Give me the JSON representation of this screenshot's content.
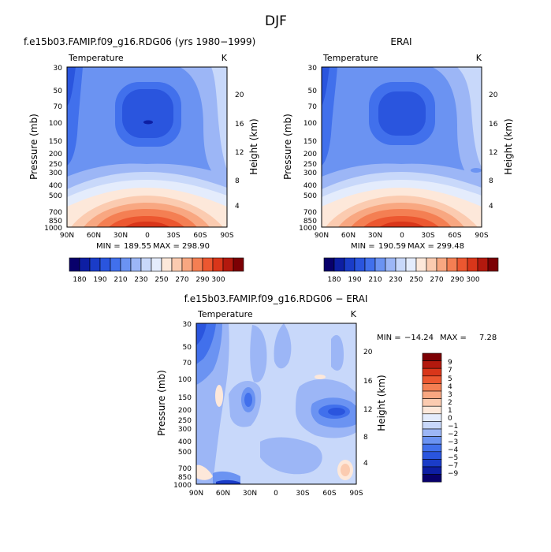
{
  "title": "DJF",
  "colors": {
    "levels": [
      "#08006b",
      "#0d1ea3",
      "#1a3cc8",
      "#2a55de",
      "#4170ec",
      "#6b93f2",
      "#9cb6f6",
      "#c8d8fa",
      "#e4ecfc",
      "#fde8da",
      "#fbcbb0",
      "#f8a781",
      "#f47f53",
      "#ec5730",
      "#d9361a",
      "#b3190e",
      "#7c0004"
    ]
  },
  "chart_data": [
    {
      "type": "heatmap",
      "title": "f.e15b03.FAMIP.f09_g16.RDG06 (yrs 1980−1999)",
      "left_label": "Temperature",
      "right_label": "K",
      "ylabel": "Pressure (mb)",
      "y2label": "Height (km)",
      "x_ticks": [
        "90N",
        "60N",
        "30N",
        "0",
        "30S",
        "60S",
        "90S"
      ],
      "y_ticks": [
        "30",
        "50",
        "70",
        "100",
        "150",
        "200",
        "250",
        "300",
        "400",
        "500",
        "700",
        "850",
        "1000"
      ],
      "y2_ticks": [
        "20",
        "16",
        "12",
        "8",
        "4"
      ],
      "stats": {
        "min_label": "MIN =",
        "min": "189.55",
        "max_label": "MAX =",
        "max": "298.90"
      },
      "colorbar_ticks": [
        "180",
        "190",
        "210",
        "230",
        "250",
        "270",
        "290",
        "300"
      ],
      "grid": false
    },
    {
      "type": "heatmap",
      "title": "ERAI",
      "left_label": "Temperature",
      "right_label": "K",
      "ylabel": "Pressure (mb)",
      "y2label": "Height (km)",
      "x_ticks": [
        "90N",
        "60N",
        "30N",
        "0",
        "30S",
        "60S",
        "90S"
      ],
      "y_ticks": [
        "30",
        "50",
        "70",
        "100",
        "150",
        "200",
        "250",
        "300",
        "400",
        "500",
        "700",
        "850",
        "1000"
      ],
      "y2_ticks": [
        "20",
        "16",
        "12",
        "8",
        "4"
      ],
      "stats": {
        "min_label": "MIN =",
        "min": "190.59",
        "max_label": "MAX =",
        "max": "299.48"
      },
      "colorbar_ticks": [
        "180",
        "190",
        "210",
        "230",
        "250",
        "270",
        "290",
        "300"
      ],
      "grid": false
    },
    {
      "type": "heatmap",
      "title": "f.e15b03.FAMIP.f09_g16.RDG06 − ERAI",
      "left_label": "Temperature",
      "right_label": "K",
      "ylabel": "Pressure (mb)",
      "y2label": "Height (km)",
      "x_ticks": [
        "90N",
        "60N",
        "30N",
        "0",
        "30S",
        "60S",
        "90S"
      ],
      "y_ticks": [
        "30",
        "50",
        "70",
        "100",
        "150",
        "200",
        "250",
        "300",
        "400",
        "500",
        "700",
        "850",
        "1000"
      ],
      "y2_ticks": [
        "20",
        "16",
        "12",
        "8",
        "4"
      ],
      "stats": {
        "min_label": "MIN =",
        "min": "−14.24",
        "max_label": "MAX =",
        "max": "7.28"
      },
      "colorbar_ticks": [
        "9",
        "7",
        "5",
        "4",
        "3",
        "2",
        "1",
        "0",
        "−1",
        "−2",
        "−3",
        "−4",
        "−5",
        "−7",
        "−9"
      ],
      "grid": false
    }
  ]
}
